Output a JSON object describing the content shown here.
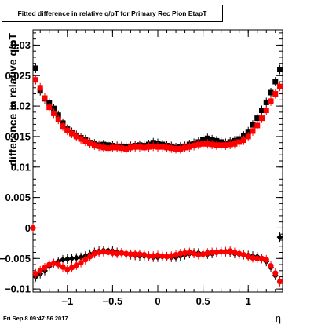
{
  "footer": "Fri Sep  8 09:47:56 2017",
  "chart_data": {
    "type": "scatter",
    "title": "Fitted difference in relative q/pT for Primary Rec Pion EtapT",
    "xlabel": "η",
    "ylabel": "difference in relative q/pT",
    "xlim": [
      -1.38,
      1.38
    ],
    "ylim": [
      -0.0105,
      0.0325
    ],
    "x_ticks": [
      -1,
      -0.5,
      0,
      0.5,
      1
    ],
    "x_tick_labels": [
      "−1",
      "−0.5",
      "0",
      "0.5",
      "1"
    ],
    "y_ticks": [
      -0.01,
      -0.005,
      0,
      0.005,
      0.01,
      0.015,
      0.02,
      0.025,
      0.03
    ],
    "y_tick_labels": [
      "−0.01",
      "−0.005",
      "0",
      "0.005",
      "0.01",
      "0.015",
      "0.02",
      "0.025",
      "0.03"
    ],
    "grid": false,
    "colors": {
      "black": "#000000",
      "red": "#ff0000"
    },
    "series": [
      {
        "marker": "square",
        "color": "#000000",
        "x": [
          -1.35,
          -1.3,
          -1.25,
          -1.2,
          -1.15,
          -1.1,
          -1.05,
          -1.0,
          -0.95,
          -0.9,
          -0.85,
          -0.8,
          -0.75,
          -0.7,
          -0.65,
          -0.6,
          -0.55,
          -0.5,
          -0.45,
          -0.4,
          -0.35,
          -0.3,
          -0.25,
          -0.2,
          -0.15,
          -0.1,
          -0.05,
          0.0,
          0.05,
          0.1,
          0.15,
          0.2,
          0.25,
          0.3,
          0.35,
          0.4,
          0.45,
          0.5,
          0.55,
          0.6,
          0.65,
          0.7,
          0.75,
          0.8,
          0.85,
          0.9,
          0.95,
          1.0,
          1.05,
          1.1,
          1.15,
          1.2,
          1.25,
          1.3,
          1.35
        ],
        "y": [
          0.0262,
          0.0225,
          0.0212,
          0.0205,
          0.0196,
          0.0185,
          0.0172,
          0.0162,
          0.0157,
          0.0152,
          0.0148,
          0.0145,
          0.014,
          0.0138,
          0.0136,
          0.0137,
          0.0136,
          0.0135,
          0.0134,
          0.0134,
          0.0133,
          0.0134,
          0.0135,
          0.0136,
          0.0135,
          0.0137,
          0.014,
          0.0139,
          0.0137,
          0.0135,
          0.0134,
          0.0132,
          0.0133,
          0.0134,
          0.0137,
          0.0139,
          0.0141,
          0.0145,
          0.0147,
          0.0145,
          0.0143,
          0.0141,
          0.0139,
          0.0141,
          0.0143,
          0.0146,
          0.0151,
          0.0158,
          0.0169,
          0.018,
          0.0193,
          0.0206,
          0.0222,
          0.024,
          0.026
        ]
      },
      {
        "marker": "square",
        "color": "#ff0000",
        "x": [
          -1.35,
          -1.3,
          -1.25,
          -1.2,
          -1.15,
          -1.1,
          -1.05,
          -1.0,
          -0.95,
          -0.9,
          -0.85,
          -0.8,
          -0.75,
          -0.7,
          -0.65,
          -0.6,
          -0.55,
          -0.5,
          -0.45,
          -0.4,
          -0.35,
          -0.3,
          -0.25,
          -0.2,
          -0.15,
          -0.1,
          -0.05,
          0.0,
          0.05,
          0.1,
          0.15,
          0.2,
          0.25,
          0.3,
          0.35,
          0.4,
          0.45,
          0.5,
          0.55,
          0.6,
          0.65,
          0.7,
          0.75,
          0.8,
          0.85,
          0.9,
          0.95,
          1.0,
          1.05,
          1.1,
          1.15,
          1.2,
          1.25,
          1.3,
          1.35
        ],
        "y": [
          0.0243,
          0.023,
          0.0213,
          0.0198,
          0.0188,
          0.0178,
          0.0167,
          0.016,
          0.0155,
          0.015,
          0.0146,
          0.0142,
          0.0139,
          0.0136,
          0.0134,
          0.0132,
          0.0131,
          0.0132,
          0.0132,
          0.0131,
          0.013,
          0.0132,
          0.0133,
          0.0133,
          0.0132,
          0.0133,
          0.0134,
          0.0133,
          0.0133,
          0.0132,
          0.0131,
          0.013,
          0.013,
          0.0132,
          0.0133,
          0.0135,
          0.0137,
          0.0138,
          0.0138,
          0.0137,
          0.0136,
          0.0136,
          0.0136,
          0.0137,
          0.0138,
          0.0141,
          0.0144,
          0.015,
          0.0159,
          0.0168,
          0.018,
          0.0193,
          0.0208,
          0.022,
          0.0232
        ]
      },
      {
        "marker": "diamond",
        "color": "#000000",
        "x": [
          -1.35,
          -1.3,
          -1.25,
          -1.2,
          -1.15,
          -1.1,
          -1.05,
          -1.0,
          -0.95,
          -0.9,
          -0.85,
          -0.8,
          -0.75,
          -0.7,
          -0.65,
          -0.6,
          -0.55,
          -0.5,
          -0.45,
          -0.4,
          -0.35,
          -0.3,
          -0.25,
          -0.2,
          -0.15,
          -0.1,
          -0.05,
          0.0,
          0.05,
          0.1,
          0.15,
          0.2,
          0.25,
          0.3,
          0.35,
          0.4,
          0.45,
          0.5,
          0.55,
          0.6,
          0.65,
          0.7,
          0.75,
          0.8,
          0.85,
          0.9,
          0.95,
          1.0,
          1.05,
          1.1,
          1.15,
          1.2,
          1.25,
          1.3,
          1.35
        ],
        "y": [
          -0.008,
          -0.0075,
          -0.007,
          -0.0063,
          -0.0058,
          -0.0055,
          -0.0052,
          -0.0051,
          -0.005,
          -0.0049,
          -0.0048,
          -0.0046,
          -0.0043,
          -0.004,
          -0.0038,
          -0.0037,
          -0.0037,
          -0.0038,
          -0.004,
          -0.0041,
          -0.0043,
          -0.0044,
          -0.0045,
          -0.0046,
          -0.0046,
          -0.0047,
          -0.0048,
          -0.0048,
          -0.0047,
          -0.0047,
          -0.0048,
          -0.0048,
          -0.0046,
          -0.0044,
          -0.0042,
          -0.0041,
          -0.0041,
          -0.0042,
          -0.0043,
          -0.0042,
          -0.004,
          -0.0039,
          -0.0039,
          -0.004,
          -0.0042,
          -0.0043,
          -0.0044,
          -0.0045,
          -0.0046,
          -0.0047,
          -0.005,
          -0.0055,
          -0.0065,
          -0.0078,
          -0.0015
        ]
      },
      {
        "marker": "circle",
        "color": "#ff0000",
        "x": [
          -1.38,
          -1.35,
          -1.3,
          -1.25,
          -1.2,
          -1.15,
          -1.1,
          -1.05,
          -1.0,
          -0.95,
          -0.9,
          -0.85,
          -0.8,
          -0.75,
          -0.7,
          -0.65,
          -0.6,
          -0.55,
          -0.5,
          -0.45,
          -0.4,
          -0.35,
          -0.3,
          -0.25,
          -0.2,
          -0.15,
          -0.1,
          -0.05,
          0.0,
          0.05,
          0.1,
          0.15,
          0.2,
          0.25,
          0.3,
          0.35,
          0.4,
          0.45,
          0.5,
          0.55,
          0.6,
          0.65,
          0.7,
          0.75,
          0.8,
          0.85,
          0.9,
          0.95,
          1.0,
          1.05,
          1.1,
          1.15,
          1.2,
          1.25,
          1.3,
          1.35
        ],
        "y": [
          0.0,
          -0.0075,
          -0.007,
          -0.0065,
          -0.006,
          -0.0058,
          -0.006,
          -0.0064,
          -0.0068,
          -0.0065,
          -0.0061,
          -0.0057,
          -0.0052,
          -0.0047,
          -0.0042,
          -0.004,
          -0.0039,
          -0.004,
          -0.0041,
          -0.0042,
          -0.0041,
          -0.0042,
          -0.0043,
          -0.0043,
          -0.0043,
          -0.0044,
          -0.0046,
          -0.0046,
          -0.0045,
          -0.0046,
          -0.0047,
          -0.0046,
          -0.0044,
          -0.0042,
          -0.0041,
          -0.004,
          -0.0042,
          -0.0044,
          -0.0043,
          -0.0041,
          -0.004,
          -0.004,
          -0.0039,
          -0.0039,
          -0.0038,
          -0.004,
          -0.0042,
          -0.0044,
          -0.0047,
          -0.0049,
          -0.005,
          -0.005,
          -0.0052,
          -0.0062,
          -0.0074,
          -0.0088
        ]
      }
    ]
  }
}
